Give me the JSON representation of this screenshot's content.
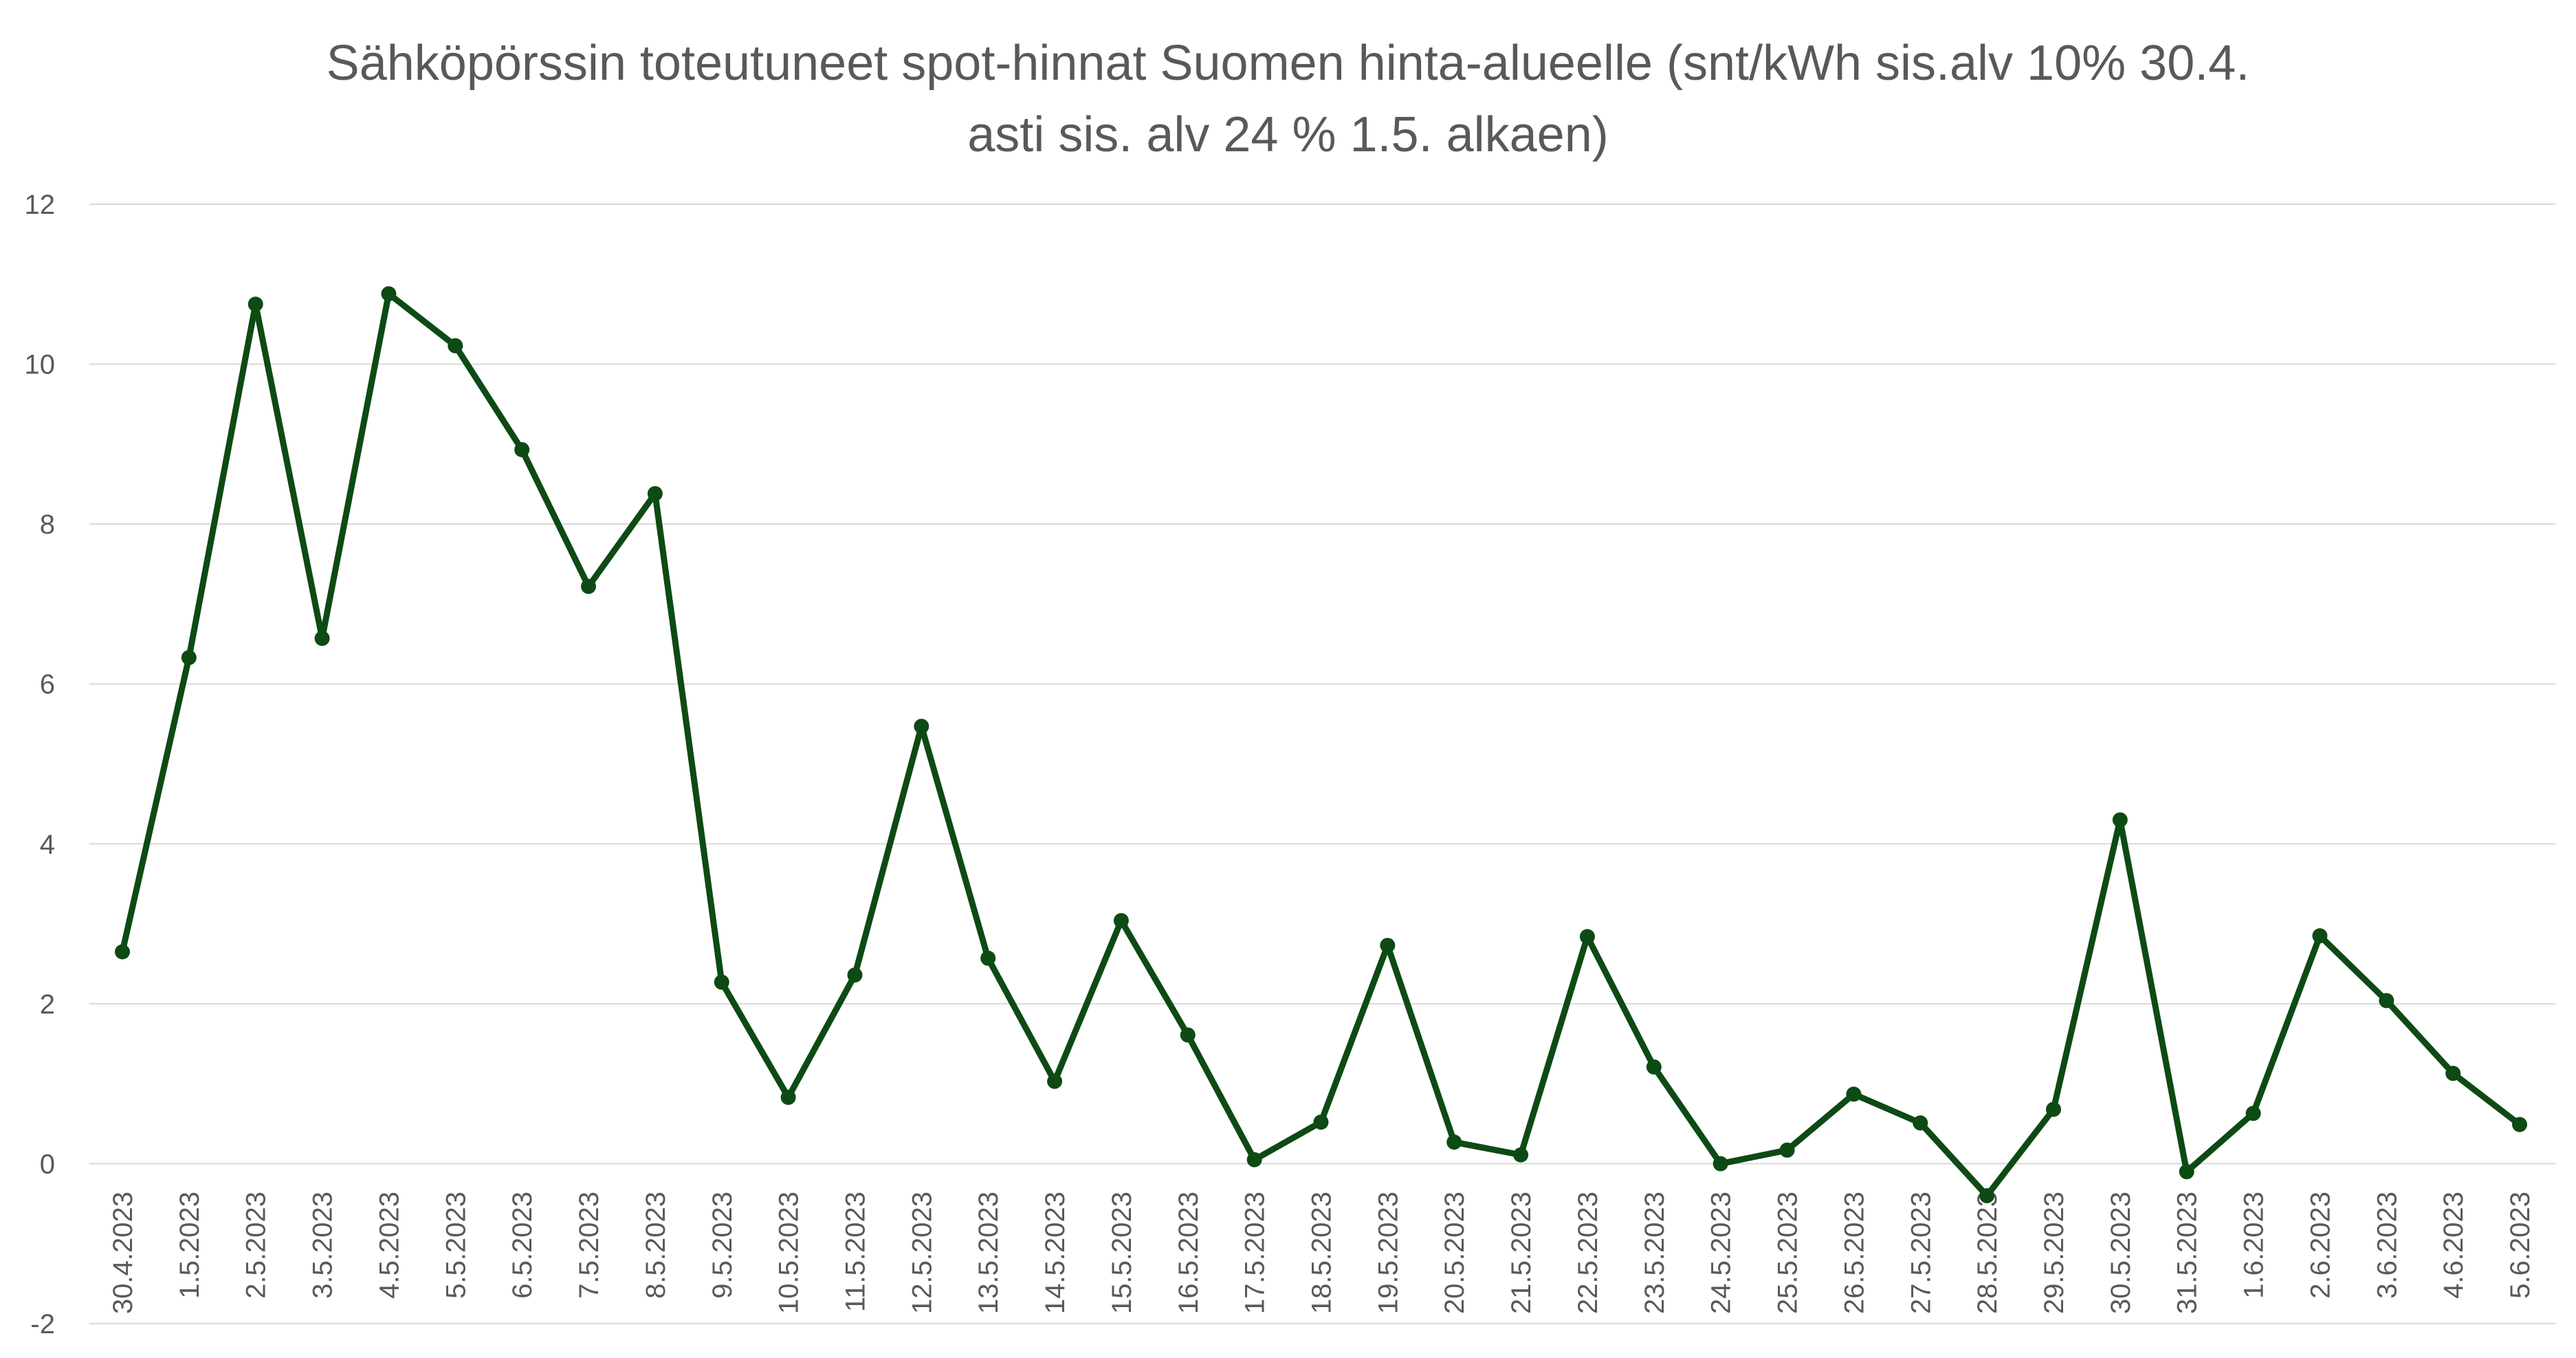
{
  "chart_data": {
    "type": "line",
    "title_lines": [
      "Sähköpörssin toteutuneet spot-hinnat Suomen hinta-alueelle (snt/kWh sis.alv 10% 30.4.",
      "asti sis. alv 24 % 1.5. alkaen)"
    ],
    "categories": [
      "30.4.2023",
      "1.5.2023",
      "2.5.2023",
      "3.5.2023",
      "4.5.2023",
      "5.5.2023",
      "6.5.2023",
      "7.5.2023",
      "8.5.2023",
      "9.5.2023",
      "10.5.2023",
      "11.5.2023",
      "12.5.2023",
      "13.5.2023",
      "14.5.2023",
      "15.5.2023",
      "16.5.2023",
      "17.5.2023",
      "18.5.2023",
      "19.5.2023",
      "20.5.2023",
      "21.5.2023",
      "22.5.2023",
      "23.5.2023",
      "24.5.2023",
      "25.5.2023",
      "26.5.2023",
      "27.5.2023",
      "28.5.2023",
      "29.5.2023",
      "30.5.2023",
      "31.5.2023",
      "1.6.2023",
      "2.6.2023",
      "3.6.2023",
      "4.6.2023",
      "5.6.2023"
    ],
    "series": [
      {
        "values": [
          2.65,
          6.33,
          10.75,
          6.57,
          10.88,
          10.23,
          8.93,
          7.22,
          8.38,
          2.27,
          0.83,
          2.36,
          5.47,
          2.57,
          1.03,
          3.04,
          1.61,
          0.05,
          0.52,
          2.73,
          0.27,
          0.11,
          2.84,
          1.21,
          0.0,
          0.17,
          0.87,
          0.51,
          -0.4,
          0.68,
          4.3,
          -0.1,
          0.63,
          2.85,
          2.04,
          1.13,
          0.49
        ],
        "color": "#0d4a14"
      }
    ],
    "yticks": [
      "-2",
      "0",
      "2",
      "4",
      "6",
      "8",
      "10",
      "12"
    ],
    "ylim": [
      -2,
      12
    ],
    "grid": true,
    "legend": "none"
  }
}
